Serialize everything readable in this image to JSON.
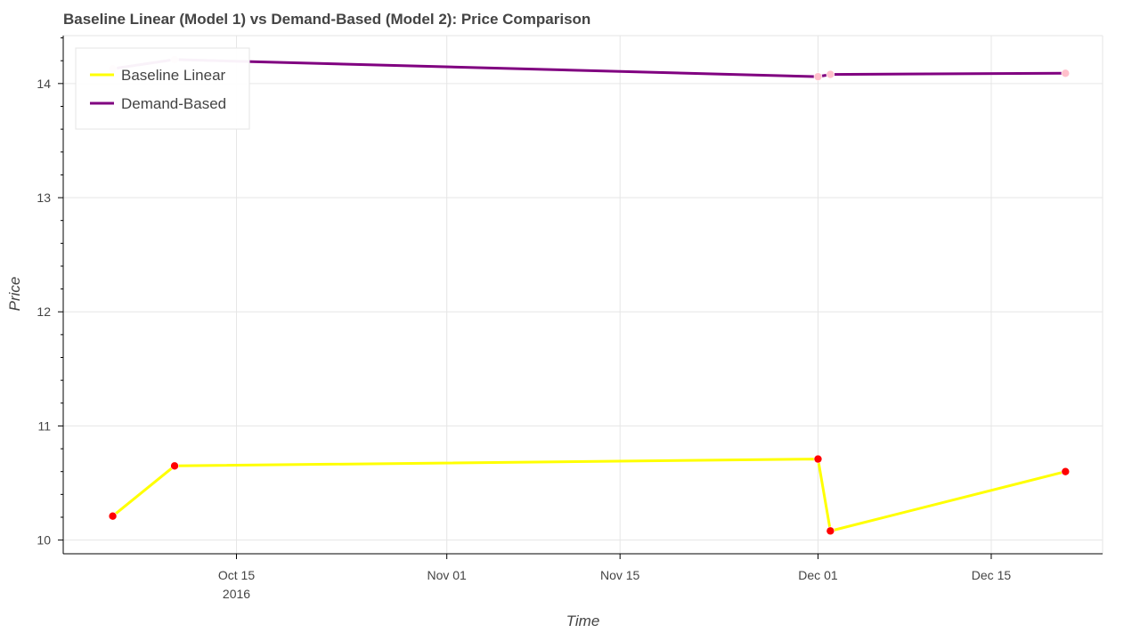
{
  "chart_data": {
    "type": "line",
    "title": "Baseline Linear (Model 1) vs Demand-Based (Model 2): Price Comparison",
    "xlabel": "Time",
    "ylabel": "Price",
    "x_axis_type": "datetime",
    "xlim": [
      "2016-10-01",
      "2016-12-24"
    ],
    "ylim": [
      9.88,
      14.42
    ],
    "x_ticks": [
      {
        "date": "2016-10-15",
        "label": "Oct 15",
        "sublabel": "2016"
      },
      {
        "date": "2016-11-01",
        "label": "Nov 01",
        "sublabel": ""
      },
      {
        "date": "2016-11-15",
        "label": "Nov 15",
        "sublabel": ""
      },
      {
        "date": "2016-12-01",
        "label": "Dec 01",
        "sublabel": ""
      },
      {
        "date": "2016-12-15",
        "label": "Dec 15",
        "sublabel": ""
      }
    ],
    "y_ticks": [
      10,
      11,
      12,
      13,
      14
    ],
    "grid": true,
    "legend_position": "top-left",
    "series": [
      {
        "name": "Baseline Linear",
        "line_color": "#ffff00",
        "marker_color": "#ff0000",
        "points": [
          {
            "x": "2016-10-05",
            "y": 10.21
          },
          {
            "x": "2016-10-10",
            "y": 10.65
          },
          {
            "x": "2016-12-01",
            "y": 10.71
          },
          {
            "x": "2016-12-02",
            "y": 10.08
          },
          {
            "x": "2016-12-21",
            "y": 10.6
          }
        ]
      },
      {
        "name": "Demand-Based",
        "line_color": "#800080",
        "marker_color": "#ffc0cb",
        "points": [
          {
            "x": "2016-10-05",
            "y": 14.13
          },
          {
            "x": "2016-10-10",
            "y": 14.21
          },
          {
            "x": "2016-12-01",
            "y": 14.06
          },
          {
            "x": "2016-12-02",
            "y": 14.08
          },
          {
            "x": "2016-12-21",
            "y": 14.09
          }
        ]
      }
    ]
  }
}
